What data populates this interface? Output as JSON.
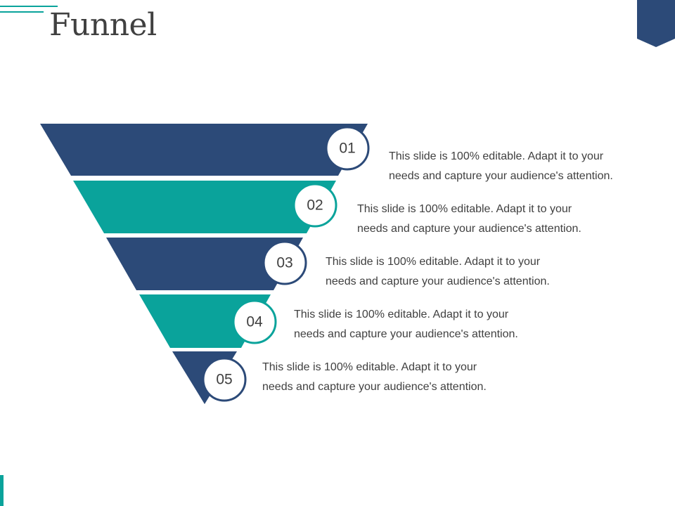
{
  "title": "Funnel",
  "colors": {
    "navy": "#2c4a78",
    "teal": "#0aa39b",
    "text": "#404040"
  },
  "stages": [
    {
      "number": "01",
      "line1": "This slide is 100% editable. Adapt it to your",
      "line2": "needs and capture your audience's attention.",
      "color": "#2c4a78"
    },
    {
      "number": "02",
      "line1": "This slide is 100% editable. Adapt it to your",
      "line2": "needs and capture your audience's attention.",
      "color": "#0aa39b"
    },
    {
      "number": "03",
      "line1": "This slide is 100% editable. Adapt it to your",
      "line2": "needs and capture your audience's attention.",
      "color": "#2c4a78"
    },
    {
      "number": "04",
      "line1": "This slide is 100% editable. Adapt it to your",
      "line2": "needs and capture your audience's attention.",
      "color": "#0aa39b"
    },
    {
      "number": "05",
      "line1": "This slide is 100% editable. Adapt it to your",
      "line2": "needs and capture your audience's attention.",
      "color": "#2c4a78"
    }
  ]
}
